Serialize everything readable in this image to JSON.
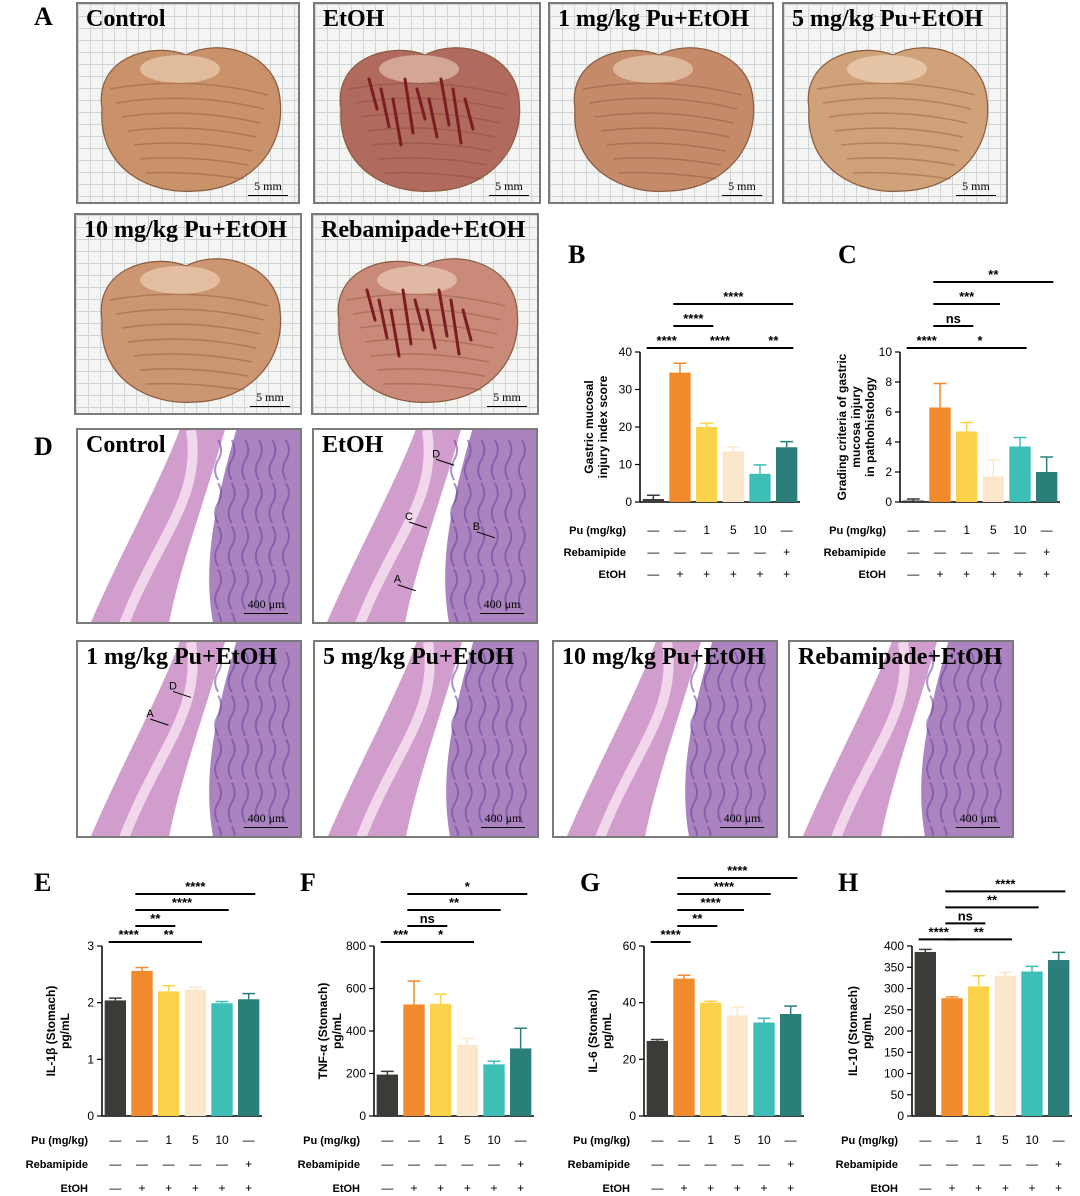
{
  "panel_letters": {
    "A": "A",
    "B": "B",
    "C": "C",
    "D": "D",
    "E": "E",
    "F": "F",
    "G": "G",
    "H": "H"
  },
  "gross_photos": [
    {
      "title": "Control",
      "scale": "5 mm",
      "tone": "#c9926a",
      "lesion": false
    },
    {
      "title": "EtOH",
      "scale": "5 mm",
      "tone": "#b06a5e",
      "lesion": true
    },
    {
      "title": "1 mg/kg Pu+EtOH",
      "scale": "5 mm",
      "tone": "#c48a6a",
      "lesion": false
    },
    {
      "title": "5 mg/kg Pu+EtOH",
      "scale": "5 mm",
      "tone": "#d0a27a",
      "lesion": false
    },
    {
      "title": "10 mg/kg Pu+EtOH",
      "scale": "5 mm",
      "tone": "#cd9672",
      "lesion": false
    },
    {
      "title": "Rebamipade+EtOH",
      "scale": "5 mm",
      "tone": "#c98a7a",
      "lesion": true
    }
  ],
  "histology": [
    {
      "title": "Control",
      "scale": "400 μm",
      "letters": []
    },
    {
      "title": "EtOH",
      "scale": "400 μm",
      "letters": [
        "D",
        "B",
        "C",
        "A"
      ]
    },
    {
      "title": "1 mg/kg Pu+EtOH",
      "scale": "400 μm",
      "letters": [
        "D",
        "A"
      ]
    },
    {
      "title": "5 mg/kg Pu+EtOH",
      "scale": "400 μm",
      "letters": []
    },
    {
      "title": "10 mg/kg Pu+EtOH",
      "scale": "400 μm",
      "letters": []
    },
    {
      "title": "Rebamipade+EtOH",
      "scale": "400 μm",
      "letters": []
    }
  ],
  "colors": {
    "control": "#3d3b38",
    "etoh": "#f08a2c",
    "pu1": "#fcd24a",
    "pu5": "#fbe8cc",
    "pu10": "#3dbfb8",
    "reba": "#2b7f7b"
  },
  "treatment_table": {
    "labels": [
      "Pu (mg/kg)",
      "Rebamipide",
      "EtOH"
    ],
    "pu": [
      "—",
      "—",
      "1",
      "5",
      "10",
      "—"
    ],
    "reba": [
      "—",
      "—",
      "—",
      "—",
      "—",
      "+"
    ],
    "etoh": [
      "—",
      "+",
      "+",
      "+",
      "+",
      "+"
    ]
  },
  "chart_data": [
    {
      "id": "B",
      "type": "bar",
      "ylabel": [
        "Gastric mucosal",
        "injury index score"
      ],
      "ylim": [
        0,
        40
      ],
      "ticks": [
        0,
        10,
        20,
        30,
        40
      ],
      "categories": [
        "Control",
        "EtOH",
        "1 mg/kg Pu",
        "5 mg/kg Pu",
        "10 mg/kg Pu",
        "Rebamipide"
      ],
      "values": [
        0.8,
        34.5,
        20,
        13.5,
        7.5,
        14.6
      ],
      "errors": [
        1.0,
        2.5,
        1.0,
        1.2,
        2.4,
        1.5
      ],
      "sig": [
        {
          "from": 0,
          "to": 1,
          "label": "****",
          "level": 0
        },
        {
          "from": 1,
          "to": 4,
          "label": "****",
          "level": 0
        },
        {
          "from": 4,
          "to": 5,
          "label": "**",
          "level": 0
        },
        {
          "from": 1,
          "to": 2,
          "label": "****",
          "level": 1
        },
        {
          "from": 1,
          "to": 5,
          "label": "****",
          "level": 2
        }
      ]
    },
    {
      "id": "C",
      "type": "bar",
      "ylabel": [
        "Grading criteria of gastric",
        "mucosa injury",
        "in pathohistology"
      ],
      "ylim": [
        0,
        10
      ],
      "ticks": [
        0,
        2,
        4,
        6,
        8,
        10
      ],
      "categories": [
        "Control",
        "EtOH",
        "1 mg/kg Pu",
        "5 mg/kg Pu",
        "10 mg/kg Pu",
        "Rebamipide"
      ],
      "values": [
        0.1,
        6.3,
        4.7,
        1.7,
        3.7,
        2.0
      ],
      "errors": [
        0.1,
        1.6,
        0.6,
        1.1,
        0.6,
        1.0
      ],
      "sig": [
        {
          "from": 0,
          "to": 1,
          "label": "****",
          "level": 0
        },
        {
          "from": 1,
          "to": 4,
          "label": "*",
          "level": 0
        },
        {
          "from": 1,
          "to": 2,
          "label": "ns",
          "level": 1
        },
        {
          "from": 1,
          "to": 3,
          "label": "***",
          "level": 2
        },
        {
          "from": 1,
          "to": 5,
          "label": "**",
          "level": 3
        }
      ]
    },
    {
      "id": "E",
      "type": "bar",
      "ylabel": [
        "IL-1β (Stomach)",
        "pg/mL"
      ],
      "ylim": [
        0,
        3
      ],
      "ticks": [
        0,
        1,
        2,
        3
      ],
      "categories": [
        "Control",
        "EtOH",
        "1 mg/kg Pu",
        "5 mg/kg Pu",
        "10 mg/kg Pu",
        "Rebamipide"
      ],
      "values": [
        2.04,
        2.56,
        2.2,
        2.23,
        1.99,
        2.06
      ],
      "errors": [
        0.04,
        0.06,
        0.1,
        0.04,
        0.03,
        0.1
      ],
      "sig": [
        {
          "from": 0,
          "to": 1,
          "label": "****",
          "level": 0
        },
        {
          "from": 1,
          "to": 3,
          "label": "**",
          "level": 0
        },
        {
          "from": 1,
          "to": 2,
          "label": "**",
          "level": 1
        },
        {
          "from": 1,
          "to": 4,
          "label": "****",
          "level": 2
        },
        {
          "from": 1,
          "to": 5,
          "label": "****",
          "level": 3
        }
      ]
    },
    {
      "id": "F",
      "type": "bar",
      "ylabel": [
        "TNF-α (Stomach)",
        "pg/mL"
      ],
      "ylim": [
        0,
        800
      ],
      "ticks": [
        0,
        200,
        400,
        600,
        800
      ],
      "categories": [
        "Control",
        "EtOH",
        "1 mg/kg Pu",
        "5 mg/kg Pu",
        "10 mg/kg Pu",
        "Rebamipide"
      ],
      "values": [
        195,
        525,
        528,
        335,
        243,
        318
      ],
      "errors": [
        15,
        110,
        45,
        30,
        15,
        95
      ],
      "sig": [
        {
          "from": 0,
          "to": 1,
          "label": "***",
          "level": 0
        },
        {
          "from": 1,
          "to": 3,
          "label": "*",
          "level": 0
        },
        {
          "from": 1,
          "to": 2,
          "label": "ns",
          "level": 1
        },
        {
          "from": 1,
          "to": 4,
          "label": "**",
          "level": 2
        },
        {
          "from": 1,
          "to": 5,
          "label": "*",
          "level": 3
        }
      ]
    },
    {
      "id": "G",
      "type": "bar",
      "ylabel": [
        "IL-6 (Stomach)",
        "pg/mL"
      ],
      "ylim": [
        0,
        60
      ],
      "ticks": [
        0,
        20,
        40,
        60
      ],
      "categories": [
        "Control",
        "EtOH",
        "1 mg/kg Pu",
        "5 mg/kg Pu",
        "10 mg/kg Pu",
        "Rebamipide"
      ],
      "values": [
        26.5,
        48.5,
        40,
        35.5,
        33,
        36
      ],
      "errors": [
        0.5,
        1.2,
        0.5,
        3,
        1.5,
        2.8
      ],
      "sig": [
        {
          "from": 0,
          "to": 1,
          "label": "****",
          "level": 0
        },
        {
          "from": 1,
          "to": 2,
          "label": "**",
          "level": 1
        },
        {
          "from": 1,
          "to": 3,
          "label": "****",
          "level": 2
        },
        {
          "from": 1,
          "to": 4,
          "label": "****",
          "level": 3
        },
        {
          "from": 1,
          "to": 5,
          "label": "****",
          "level": 4
        }
      ]
    },
    {
      "id": "H",
      "type": "bar",
      "ylabel": [
        "IL-10 (Stomach)",
        "pg/mL"
      ],
      "ylim": [
        0,
        400
      ],
      "ticks": [
        0,
        50,
        100,
        150,
        200,
        250,
        300,
        350,
        400
      ],
      "categories": [
        "Control",
        "EtOH",
        "1 mg/kg Pu",
        "5 mg/kg Pu",
        "10 mg/kg Pu",
        "Rebamipide"
      ],
      "values": [
        386,
        277,
        305,
        330,
        340,
        367
      ],
      "errors": [
        6,
        3,
        25,
        8,
        12,
        18
      ],
      "sig": [
        {
          "from": 0,
          "to": 1,
          "label": "****",
          "level": 0
        },
        {
          "from": 1,
          "to": 3,
          "label": "**",
          "level": 0
        },
        {
          "from": 1,
          "to": 2,
          "label": "ns",
          "level": 1
        },
        {
          "from": 1,
          "to": 4,
          "label": "**",
          "level": 2
        },
        {
          "from": 1,
          "to": 5,
          "label": "****",
          "level": 3
        }
      ]
    }
  ]
}
